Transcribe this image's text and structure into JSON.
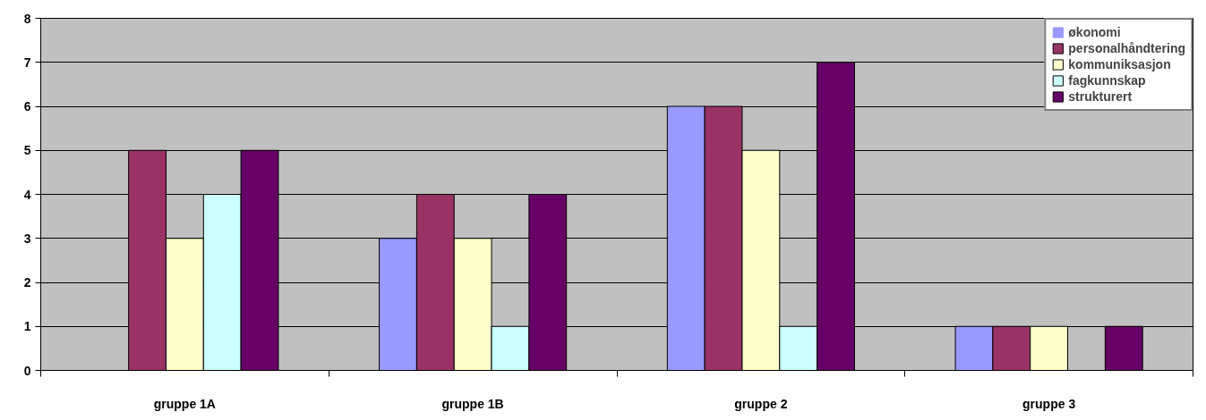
{
  "chart_data": {
    "type": "bar",
    "categories": [
      "gruppe 1A",
      "gruppe 1B",
      "gruppe 2",
      "gruppe 3"
    ],
    "series": [
      {
        "name": "økonomi",
        "color": "#9999ff",
        "values": [
          0,
          3,
          6,
          1
        ]
      },
      {
        "name": "personalhåndtering",
        "color": "#993366",
        "values": [
          5,
          4,
          6,
          1
        ]
      },
      {
        "name": "kommuniksasjon",
        "color": "#ffffcc",
        "values": [
          3,
          3,
          5,
          1
        ]
      },
      {
        "name": "fagkunnskap",
        "color": "#ccffff",
        "values": [
          4,
          1,
          1,
          0
        ]
      },
      {
        "name": "strukturert",
        "color": "#660066",
        "values": [
          5,
          4,
          7,
          1
        ]
      }
    ],
    "ylim": [
      0,
      8
    ],
    "yticks": [
      0,
      1,
      2,
      3,
      4,
      5,
      6,
      7,
      8
    ],
    "grid": "y",
    "legend": "top right"
  }
}
